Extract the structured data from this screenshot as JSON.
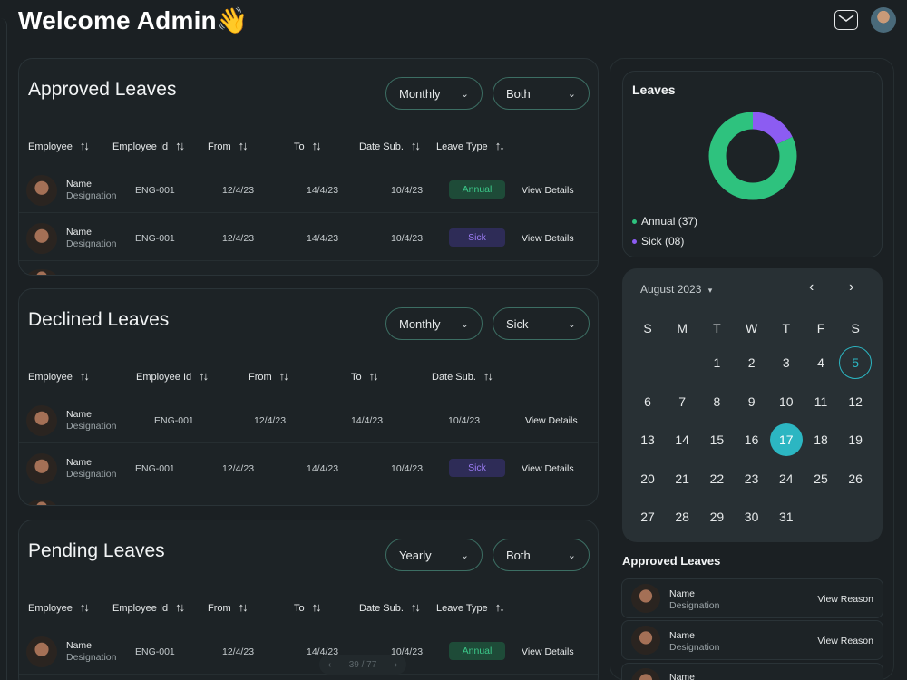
{
  "header": {
    "title": "Welcome Admin👋"
  },
  "columns_full": [
    "Employee",
    "Employee Id",
    "From",
    "To",
    "Date Sub.",
    "Leave Type"
  ],
  "columns_declined": [
    "Employee",
    "Employee Id",
    "From",
    "To",
    "Date Sub."
  ],
  "approved": {
    "title": "Approved Leaves",
    "filter1": "Monthly",
    "filter2": "Both",
    "rows": [
      {
        "name": "Name",
        "designation": "Designation",
        "id": "ENG-001",
        "from": "12/4/23",
        "to": "14/4/23",
        "date_sub": "10/4/23",
        "type": "Annual",
        "action": "View Details"
      },
      {
        "name": "Name",
        "designation": "Designation",
        "id": "ENG-001",
        "from": "12/4/23",
        "to": "14/4/23",
        "date_sub": "10/4/23",
        "type": "Sick",
        "action": "View Details"
      }
    ]
  },
  "declined": {
    "title": "Declined Leaves",
    "filter1": "Monthly",
    "filter2": "Sick",
    "rows": [
      {
        "name": "Name",
        "designation": "Designation",
        "id": "ENG-001",
        "from": "12/4/23",
        "to": "14/4/23",
        "date_sub": "10/4/23",
        "action": "View Details"
      },
      {
        "name": "Name",
        "designation": "Designation",
        "id": "ENG-001",
        "from": "12/4/23",
        "to": "14/4/23",
        "date_sub": "10/4/23",
        "type": "Sick",
        "action": "View Details"
      }
    ]
  },
  "pending": {
    "title": "Pending Leaves",
    "filter1": "Yearly",
    "filter2": "Both",
    "rows": [
      {
        "name": "Name",
        "designation": "Designation",
        "id": "ENG-001",
        "from": "12/4/23",
        "to": "14/4/23",
        "date_sub": "10/4/23",
        "type": "Annual",
        "action": "View Details"
      }
    ]
  },
  "leaves_card": {
    "title": "Leaves",
    "annual_label": "Annual (37)",
    "annual_value": 37,
    "sick_label": "Sick (08)",
    "sick_value": 8,
    "colors": {
      "annual": "#2ec27e",
      "sick": "#8c5cf2"
    }
  },
  "calendar": {
    "month": "August 2023",
    "weekdays": [
      "S",
      "M",
      "T",
      "W",
      "T",
      "F",
      "S"
    ],
    "selected": 17,
    "today": 5
  },
  "approved_side": {
    "title": "Approved Leaves",
    "rows": [
      {
        "name": "Name",
        "designation": "Designation",
        "action": "View Reason"
      },
      {
        "name": "Name",
        "designation": "Designation",
        "action": "View Reason"
      },
      {
        "name": "Name"
      }
    ]
  },
  "pager": {
    "text": "39 / 77"
  },
  "colors": {
    "accent": "#2cb6c2",
    "background": "#1b2023",
    "annual_badge": "#3cc98a",
    "sick_badge": "#9b7cf4"
  }
}
